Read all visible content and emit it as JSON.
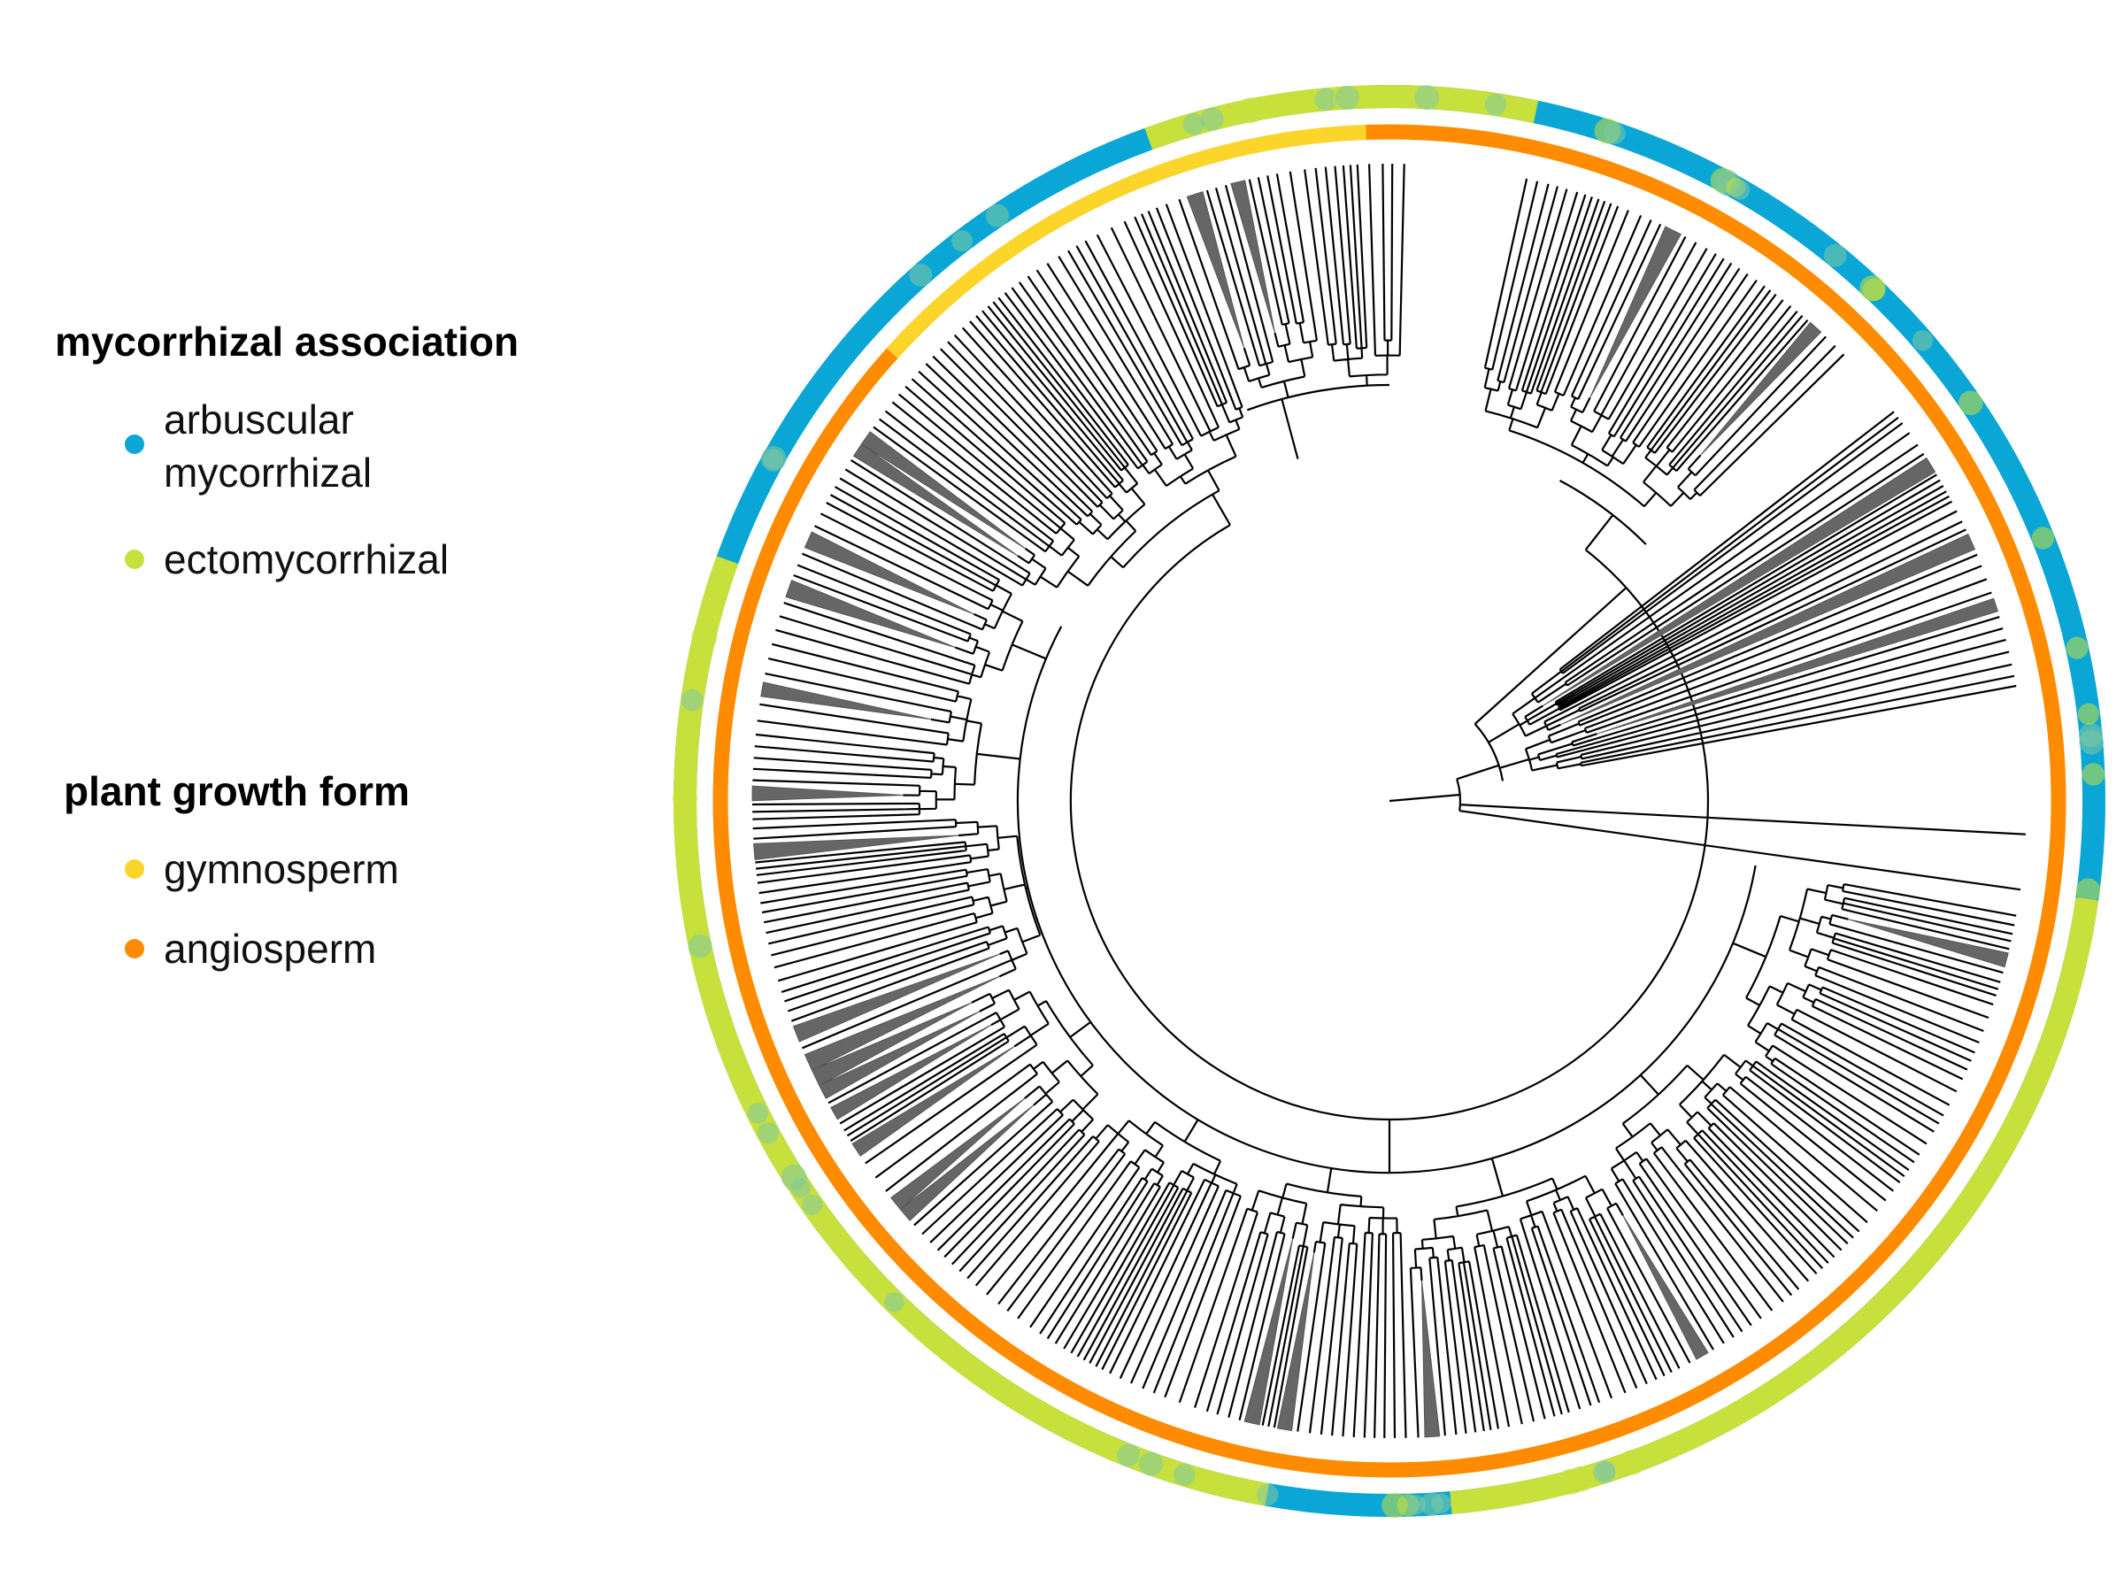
{
  "legend": {
    "mycorrhizal": {
      "title": "mycorrhizal association",
      "items": [
        {
          "lines": [
            "arbuscular",
            "mycorrhizal"
          ],
          "color": "#0aa6d6"
        },
        {
          "lines": [
            "ectomycorrhizal"
          ],
          "color": "#c8e03c"
        }
      ]
    },
    "growth": {
      "title": "plant growth form",
      "items": [
        {
          "lines": [
            "gymnosperm"
          ],
          "color": "#fcd52a"
        },
        {
          "lines": [
            "angiosperm"
          ],
          "color": "#ff8b00"
        }
      ]
    }
  },
  "rings": {
    "mycorrhizal": {
      "base_color": "#0aa6d6",
      "segments": [
        {
          "from": 190,
          "to": 270,
          "color": "#c8e03c"
        },
        {
          "from": 255,
          "to": 290,
          "color": "#c8e03c"
        },
        {
          "from": 98,
          "to": 175,
          "color": "#c8e03c"
        },
        {
          "from": 340,
          "to": 12,
          "color": "#c8e03c"
        }
      ]
    },
    "growth": {
      "base_color": "#ff8b00",
      "segments": [
        {
          "from": 312,
          "to": 358,
          "color": "#fcd52a"
        }
      ]
    }
  }
}
